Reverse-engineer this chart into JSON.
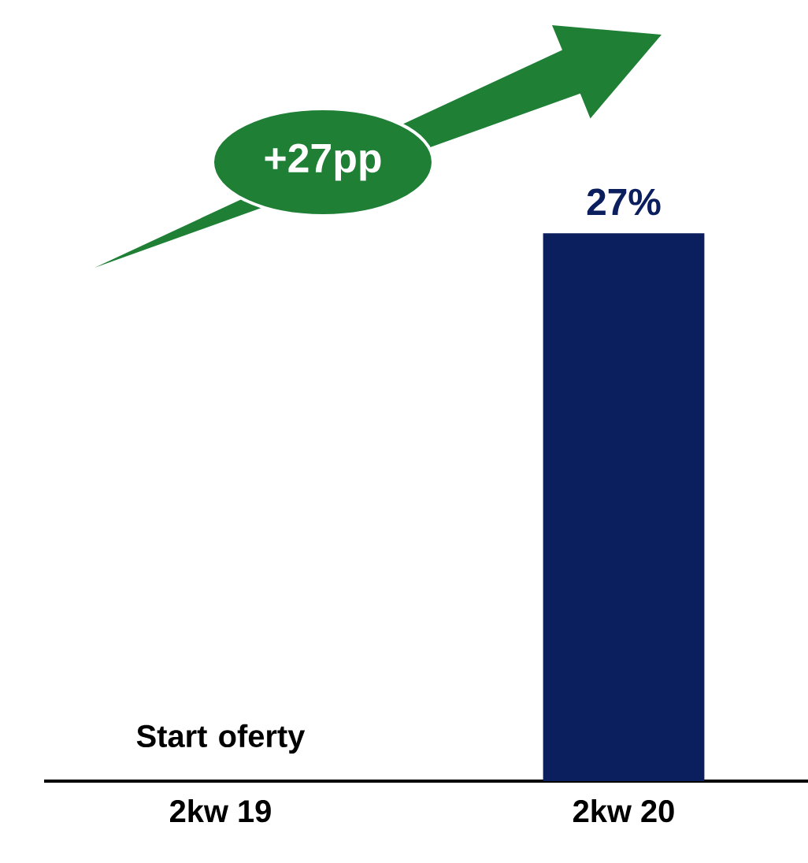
{
  "chart_data": {
    "type": "bar",
    "categories": [
      "2kw 19",
      "2kw 20"
    ],
    "values": [
      0,
      27
    ],
    "color": "#0b1f5e",
    "value_labels": [
      null,
      "27%"
    ],
    "annotations": [
      "+27pp",
      {
        "text": "Start oferty",
        "x": "2kw 19",
        "y": 0
      }
    ]
  }
}
